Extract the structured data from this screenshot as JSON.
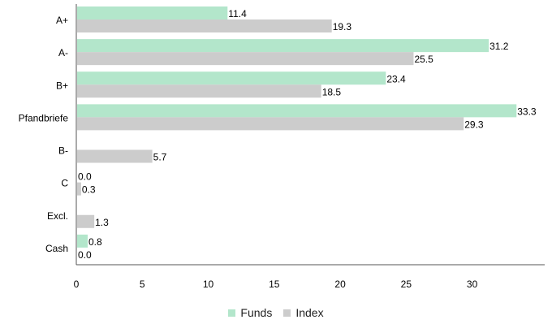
{
  "chart_data": {
    "type": "bar",
    "orientation": "horizontal",
    "categories": [
      "A+",
      "A-",
      "B+",
      "Pfandbriefe",
      "B-",
      "C",
      "Excl.",
      "Cash"
    ],
    "series": [
      {
        "name": "Funds",
        "color": "#b3e6cb",
        "values": [
          11.4,
          31.2,
          23.4,
          33.3,
          null,
          0.0,
          null,
          0.8
        ]
      },
      {
        "name": "Index",
        "color": "#cccccc",
        "values": [
          19.3,
          25.5,
          18.5,
          29.3,
          5.7,
          0.3,
          1.3,
          0.0
        ]
      }
    ],
    "data_labels": [
      [
        "11.4",
        "31.2",
        "23.4",
        "33.3",
        "",
        "0.0",
        "",
        "0.8"
      ],
      [
        "19.3",
        "25.5",
        "18.5",
        "29.3",
        "5.7",
        "0.3",
        "1.3",
        "0.0"
      ]
    ],
    "x_ticks": [
      0,
      5,
      10,
      15,
      20,
      25,
      30
    ],
    "xlim": [
      0,
      35.5
    ],
    "grid": false,
    "legend_position": "bottom-center"
  }
}
